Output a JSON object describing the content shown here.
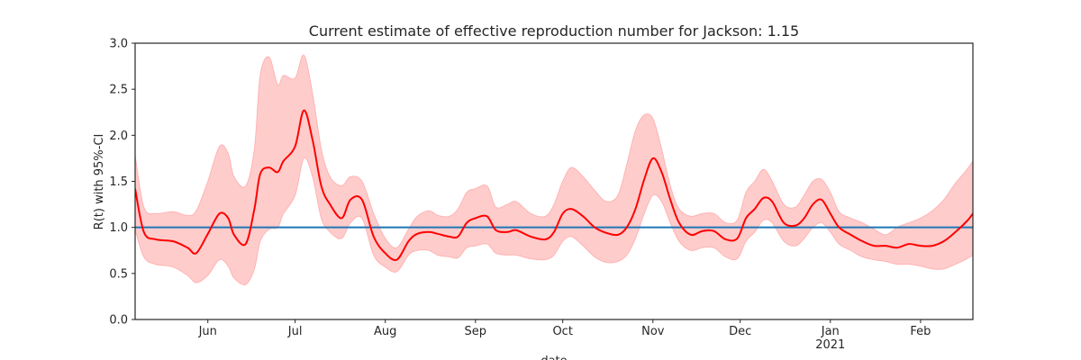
{
  "chart_data": {
    "type": "line",
    "title": "Current estimate of effective reproduction number for Jackson: 1.15",
    "xlabel": "date",
    "ylabel": "R(t) with 95%-CI",
    "xlim": [
      "2020-05-07",
      "2021-02-19"
    ],
    "ylim": [
      0,
      3
    ],
    "yticks": [
      0.0,
      0.5,
      1.0,
      1.5,
      2.0,
      2.5,
      3.0
    ],
    "xticks": [
      {
        "date": "2020-06-01",
        "label": "Jun",
        "sublabel": ""
      },
      {
        "date": "2020-07-01",
        "label": "Jul",
        "sublabel": ""
      },
      {
        "date": "2020-08-01",
        "label": "Aug",
        "sublabel": ""
      },
      {
        "date": "2020-09-01",
        "label": "Sep",
        "sublabel": ""
      },
      {
        "date": "2020-10-01",
        "label": "Oct",
        "sublabel": ""
      },
      {
        "date": "2020-11-01",
        "label": "Nov",
        "sublabel": ""
      },
      {
        "date": "2020-12-01",
        "label": "Dec",
        "sublabel": ""
      },
      {
        "date": "2021-01-01",
        "label": "Jan",
        "sublabel": "2021"
      },
      {
        "date": "2021-02-01",
        "label": "Feb",
        "sublabel": ""
      }
    ],
    "reference_line": 1.0,
    "colors": {
      "line": "#ff0000",
      "band": "#ffcccc",
      "band_edge": "#ffb3b3",
      "reference": "#1f77b4",
      "axes": "#262626"
    },
    "grid": false,
    "x": [
      "2020-05-07",
      "2020-05-10",
      "2020-05-14",
      "2020-05-20",
      "2020-05-25",
      "2020-05-28",
      "2020-06-01",
      "2020-06-05",
      "2020-06-08",
      "2020-06-10",
      "2020-06-14",
      "2020-06-17",
      "2020-06-19",
      "2020-06-22",
      "2020-06-25",
      "2020-06-27",
      "2020-07-01",
      "2020-07-04",
      "2020-07-07",
      "2020-07-10",
      "2020-07-13",
      "2020-07-17",
      "2020-07-20",
      "2020-07-24",
      "2020-07-28",
      "2020-08-01",
      "2020-08-05",
      "2020-08-09",
      "2020-08-12",
      "2020-08-16",
      "2020-08-19",
      "2020-08-23",
      "2020-08-26",
      "2020-08-29",
      "2020-09-01",
      "2020-09-05",
      "2020-09-08",
      "2020-09-12",
      "2020-09-15",
      "2020-09-20",
      "2020-09-25",
      "2020-09-28",
      "2020-10-01",
      "2020-10-04",
      "2020-10-08",
      "2020-10-12",
      "2020-10-16",
      "2020-10-20",
      "2020-10-23",
      "2020-10-26",
      "2020-10-29",
      "2020-11-01",
      "2020-11-04",
      "2020-11-07",
      "2020-11-10",
      "2020-11-14",
      "2020-11-18",
      "2020-11-22",
      "2020-11-26",
      "2020-11-30",
      "2020-12-03",
      "2020-12-06",
      "2020-12-09",
      "2020-12-12",
      "2020-12-16",
      "2020-12-20",
      "2020-12-23",
      "2020-12-26",
      "2020-12-29",
      "2021-01-01",
      "2021-01-04",
      "2021-01-08",
      "2021-01-12",
      "2021-01-16",
      "2021-01-20",
      "2021-01-24",
      "2021-01-28",
      "2021-02-01",
      "2021-02-05",
      "2021-02-09",
      "2021-02-13",
      "2021-02-17",
      "2021-02-19"
    ],
    "series": [
      {
        "name": "",
        "values": [
          1.42,
          0.95,
          0.87,
          0.85,
          0.78,
          0.72,
          0.93,
          1.15,
          1.1,
          0.92,
          0.82,
          1.2,
          1.58,
          1.65,
          1.6,
          1.72,
          1.88,
          2.27,
          1.95,
          1.45,
          1.25,
          1.1,
          1.3,
          1.3,
          0.9,
          0.72,
          0.65,
          0.85,
          0.93,
          0.95,
          0.93,
          0.9,
          0.9,
          1.05,
          1.1,
          1.12,
          0.97,
          0.95,
          0.97,
          0.9,
          0.87,
          0.95,
          1.15,
          1.2,
          1.12,
          1.0,
          0.94,
          0.92,
          1.0,
          1.2,
          1.52,
          1.75,
          1.6,
          1.3,
          1.05,
          0.92,
          0.96,
          0.96,
          0.87,
          0.88,
          1.1,
          1.2,
          1.32,
          1.28,
          1.05,
          1.02,
          1.1,
          1.25,
          1.3,
          1.15,
          1.0,
          0.92,
          0.85,
          0.8,
          0.8,
          0.78,
          0.82,
          0.8,
          0.8,
          0.85,
          0.95,
          1.07,
          1.15
        ]
      }
    ],
    "ci_upper": [
      1.78,
      1.22,
      1.15,
      1.17,
      1.13,
      1.18,
      1.5,
      1.88,
      1.8,
      1.55,
      1.45,
      1.85,
      2.65,
      2.85,
      2.55,
      2.65,
      2.62,
      2.87,
      2.45,
      1.85,
      1.55,
      1.45,
      1.55,
      1.5,
      1.15,
      0.88,
      0.78,
      0.98,
      1.12,
      1.18,
      1.13,
      1.12,
      1.2,
      1.38,
      1.42,
      1.45,
      1.22,
      1.25,
      1.28,
      1.15,
      1.12,
      1.25,
      1.5,
      1.65,
      1.55,
      1.4,
      1.28,
      1.35,
      1.68,
      2.05,
      2.22,
      2.18,
      1.85,
      1.45,
      1.2,
      1.12,
      1.15,
      1.15,
      1.05,
      1.08,
      1.38,
      1.5,
      1.63,
      1.5,
      1.25,
      1.22,
      1.35,
      1.5,
      1.52,
      1.38,
      1.17,
      1.1,
      1.05,
      0.98,
      0.92,
      1.0,
      1.05,
      1.1,
      1.18,
      1.3,
      1.48,
      1.63,
      1.72
    ],
    "ci_lower": [
      0.98,
      0.68,
      0.6,
      0.57,
      0.48,
      0.4,
      0.48,
      0.65,
      0.58,
      0.45,
      0.38,
      0.55,
      0.85,
      0.98,
      1.0,
      1.15,
      1.35,
      1.75,
      1.55,
      1.1,
      0.95,
      0.88,
      1.05,
      1.1,
      0.7,
      0.57,
      0.52,
      0.7,
      0.75,
      0.75,
      0.7,
      0.68,
      0.67,
      0.78,
      0.8,
      0.82,
      0.72,
      0.7,
      0.7,
      0.66,
      0.65,
      0.7,
      0.85,
      0.9,
      0.8,
      0.68,
      0.62,
      0.63,
      0.7,
      0.88,
      1.15,
      1.35,
      1.28,
      1.05,
      0.85,
      0.75,
      0.78,
      0.78,
      0.68,
      0.66,
      0.85,
      0.95,
      1.08,
      1.05,
      0.85,
      0.8,
      0.88,
      1.0,
      1.05,
      0.95,
      0.82,
      0.75,
      0.68,
      0.65,
      0.63,
      0.6,
      0.6,
      0.58,
      0.55,
      0.55,
      0.6,
      0.66,
      0.7
    ]
  }
}
